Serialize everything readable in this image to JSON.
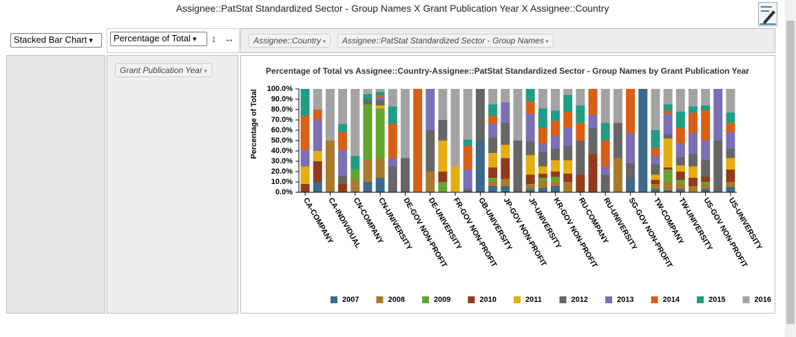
{
  "page_title": "Assignee::PatStat Standardized Sector - Group Names X Grant Publication Year X Assignee::Country",
  "controls": {
    "renderer": "Stacked Bar Chart",
    "aggregator": "Percentage of Total",
    "col_fields": [
      "Assignee::Country",
      "Assignee::PatStat Standardized Sector - Group Names"
    ],
    "row_fields": [
      "Grant Publication Year"
    ]
  },
  "chart_data": {
    "type": "stacked_bar",
    "title": "Percentage of Total vs Assignee::Country-Assignee::PatStat Standardized Sector - Group Names by Grant Publication Year",
    "y_label": "Percentage of Total",
    "categories": [
      "CA-COMPANY",
      null,
      "CA-INDIVIDUAL",
      null,
      "CN-COMPANY",
      null,
      "CN-UNIVERSITY",
      null,
      "DE-GOV NON-PROFIT",
      null,
      "DE-UNIVERSITY",
      null,
      "FR-GOV NON-PROFIT",
      null,
      "GB-UNIVERSITY",
      null,
      "JP-GOV NON-PROFIT",
      null,
      "JP-UNIVERSITY",
      null,
      "KR-GOV NON-PROFIT",
      null,
      "RU-COMPANY",
      null,
      "RU-UNIVERSITY",
      null,
      "SG-GOV NON-PROFIT",
      null,
      "TW-COMPANY",
      null,
      "TW-UNIVERSITY",
      null,
      "US-GOV NON-PROFIT",
      null,
      "US-UNIVERSITY"
    ],
    "series": [
      {
        "name": "2007",
        "color": "#3d6a8c",
        "values": [
          null,
          10,
          null,
          null,
          null,
          10,
          14,
          null,
          null,
          null,
          null,
          null,
          null,
          null,
          50,
          6,
          6,
          null,
          3,
          4,
          6,
          null,
          null,
          null,
          null,
          null,
          14,
          100,
          3,
          2,
          3,
          null,
          3,
          null,
          5
        ]
      },
      {
        "name": "2008",
        "color": "#a97a2c",
        "values": [
          null,
          null,
          50,
          null,
          12,
          21,
          19,
          null,
          null,
          null,
          20,
          null,
          null,
          null,
          null,
          4,
          7,
          null,
          5,
          7,
          4,
          10,
          null,
          null,
          null,
          33,
          null,
          null,
          5,
          8,
          5,
          6,
          4,
          null,
          5
        ]
      },
      {
        "name": "2009",
        "color": "#64a431",
        "values": [
          null,
          null,
          null,
          null,
          10,
          54,
          48,
          null,
          null,
          null,
          null,
          10,
          null,
          null,
          null,
          4,
          null,
          null,
          null,
          3,
          5,
          null,
          null,
          null,
          null,
          null,
          null,
          null,
          null,
          12,
          4,
          null,
          3,
          null,
          null
        ]
      },
      {
        "name": "2010",
        "color": "#923b1c",
        "values": [
          8,
          20,
          null,
          8,
          null,
          null,
          null,
          null,
          null,
          null,
          null,
          10,
          null,
          null,
          null,
          10,
          20,
          null,
          9,
          4,
          5,
          8,
          17,
          37,
          null,
          null,
          null,
          null,
          4,
          2,
          8,
          8,
          5,
          null,
          12
        ]
      },
      {
        "name": "2011",
        "color": "#e4ad10",
        "values": [
          17,
          10,
          null,
          null,
          null,
          null,
          3,
          null,
          null,
          null,
          null,
          30,
          25,
          null,
          null,
          14,
          13,
          null,
          19,
          7,
          11,
          13,
          null,
          null,
          null,
          null,
          null,
          null,
          5,
          28,
          6,
          11,
          null,
          null,
          11
        ]
      },
      {
        "name": "2012",
        "color": "#666666",
        "values": [
          null,
          null,
          null,
          8,
          null,
          5,
          5,
          25,
          33,
          null,
          40,
          20,
          null,
          3,
          50,
          15,
          21,
          50,
          13,
          14,
          11,
          14,
          33,
          25,
          17,
          34,
          14,
          null,
          10,
          4,
          8,
          12,
          16,
          50,
          9
        ]
      },
      {
        "name": "2013",
        "color": "#7b70b6",
        "values": [
          16,
          30,
          null,
          25,
          null,
          null,
          3,
          8,
          null,
          null,
          40,
          null,
          null,
          19,
          null,
          13,
          20,
          null,
          27,
          8,
          12,
          17,
          null,
          13,
          8,
          null,
          29,
          null,
          8,
          20,
          13,
          20,
          19,
          50,
          16
        ]
      },
      {
        "name": "2014",
        "color": "#da5f16",
        "values": [
          33,
          10,
          null,
          17,
          null,
          null,
          2,
          33,
          null,
          100,
          null,
          null,
          null,
          23,
          null,
          8,
          null,
          null,
          12,
          15,
          15,
          16,
          17,
          25,
          25,
          null,
          43,
          null,
          8,
          3,
          15,
          20,
          29,
          null,
          9
        ]
      },
      {
        "name": "2015",
        "color": "#1f9d85",
        "values": [
          26,
          null,
          null,
          8,
          13,
          5,
          3,
          17,
          null,
          null,
          null,
          null,
          null,
          6,
          null,
          11,
          null,
          null,
          12,
          19,
          10,
          16,
          17,
          null,
          17,
          null,
          null,
          null,
          17,
          6,
          16,
          6,
          5,
          null,
          10
        ]
      },
      {
        "name": "2016",
        "color": "#a3a3a3",
        "values": [
          null,
          20,
          50,
          34,
          65,
          5,
          3,
          17,
          67,
          null,
          null,
          30,
          75,
          49,
          null,
          15,
          13,
          50,
          null,
          19,
          21,
          6,
          16,
          null,
          33,
          33,
          null,
          null,
          40,
          15,
          22,
          17,
          16,
          null,
          23
        ]
      }
    ],
    "ylim": [
      0,
      100
    ],
    "yticks": [
      {
        "value": 0,
        "label": "0.0%"
      },
      {
        "value": 10,
        "label": "10.0%"
      },
      {
        "value": 20,
        "label": "20.0%"
      },
      {
        "value": 30,
        "label": "30.0%"
      },
      {
        "value": 40,
        "label": "40.0%"
      },
      {
        "value": 50,
        "label": "50.0%"
      },
      {
        "value": 60,
        "label": "60.0%"
      },
      {
        "value": 70,
        "label": "70.0%"
      },
      {
        "value": 80,
        "label": "80.0%"
      },
      {
        "value": 90,
        "label": "90.0%"
      },
      {
        "value": 100,
        "label": "100.0%"
      }
    ],
    "legend": "bottom"
  }
}
